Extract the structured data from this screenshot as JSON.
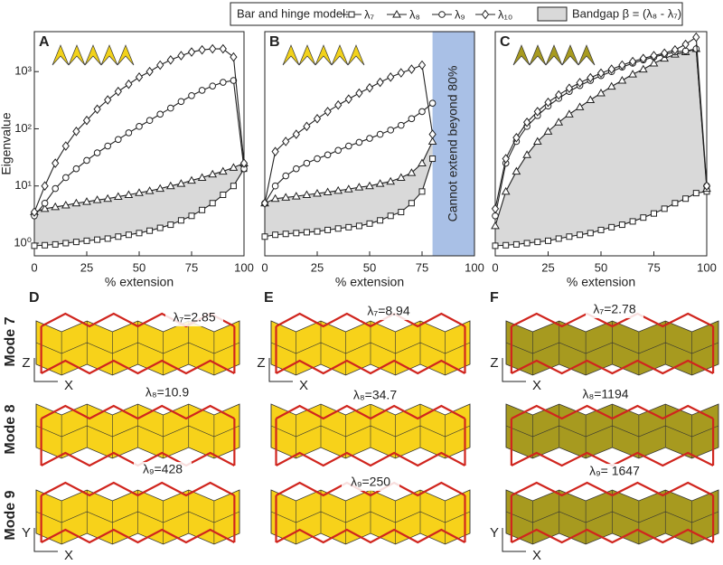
{
  "chart_data": [
    {
      "type": "line",
      "title": "A",
      "ylabel": "Eigenvalue",
      "xlabel": "% extension",
      "log_y": true,
      "legend_title": "Bar and hinge model:",
      "fill_label": "Bandgap β = (λ₈ - λ₇)",
      "fill_color": "#d9d9d9",
      "x": [
        0,
        5,
        10,
        15,
        20,
        25,
        30,
        35,
        40,
        45,
        50,
        55,
        60,
        65,
        70,
        75,
        80,
        85,
        90,
        95,
        100
      ],
      "xlim": [
        0,
        100
      ],
      "xticks": [
        0,
        25,
        50,
        75,
        100
      ],
      "ylim": [
        0.6,
        5000
      ],
      "yticks": [
        {
          "value": 1,
          "label": "10⁰"
        },
        {
          "value": 10,
          "label": "10¹"
        },
        {
          "value": 100,
          "label": "10²"
        },
        {
          "value": 1000,
          "label": "10³"
        }
      ],
      "series": [
        {
          "name": "λ₇",
          "marker": "square",
          "color": "#222222",
          "values": [
            0.9,
            0.92,
            0.95,
            1.0,
            1.05,
            1.1,
            1.15,
            1.2,
            1.3,
            1.4,
            1.5,
            1.65,
            1.85,
            2.1,
            2.5,
            3,
            3.8,
            5,
            7,
            10,
            20
          ]
        },
        {
          "name": "λ₈",
          "marker": "triangle",
          "color": "#222222",
          "values": [
            3.5,
            4,
            4.3,
            4.6,
            5,
            5.3,
            5.7,
            6,
            6.5,
            7,
            7.6,
            8.2,
            9,
            10,
            11,
            12.5,
            14,
            16,
            18,
            21,
            25
          ]
        },
        {
          "name": "λ₉",
          "marker": "circle",
          "color": "#222222",
          "values": [
            3,
            5,
            9,
            14,
            20,
            28,
            38,
            50,
            65,
            85,
            110,
            140,
            180,
            230,
            300,
            380,
            470,
            560,
            650,
            700,
            20
          ]
        },
        {
          "name": "λ₁₀",
          "marker": "diamond",
          "color": "#222222",
          "values": [
            3.5,
            10,
            25,
            50,
            90,
            140,
            220,
            320,
            450,
            600,
            800,
            1000,
            1300,
            1600,
            1900,
            2200,
            2400,
            2500,
            2500,
            1800,
            25
          ]
        }
      ]
    },
    {
      "type": "line",
      "title": "B",
      "xlabel": "% extension",
      "log_y": true,
      "fill_color": "#d9d9d9",
      "annotation": "Cannot extend beyond 80%",
      "shaded_x": [
        80,
        100
      ],
      "shade_color": "#a9c0e6",
      "x": [
        0,
        5,
        10,
        15,
        20,
        25,
        30,
        35,
        40,
        45,
        50,
        55,
        60,
        65,
        70,
        75,
        80
      ],
      "xlim": [
        0,
        100
      ],
      "xticks": [
        0,
        25,
        50,
        75,
        100
      ],
      "ylim": [
        0.6,
        5000
      ],
      "series": [
        {
          "name": "λ₇",
          "marker": "square",
          "color": "#222222",
          "values": [
            1.3,
            1.4,
            1.45,
            1.5,
            1.55,
            1.6,
            1.7,
            1.8,
            1.9,
            2.0,
            2.2,
            2.5,
            3,
            3.5,
            5,
            8,
            30
          ]
        },
        {
          "name": "λ₈",
          "marker": "triangle",
          "color": "#222222",
          "values": [
            5,
            6,
            6.3,
            6.6,
            7,
            7.4,
            7.8,
            8.3,
            8.8,
            9.5,
            10,
            11,
            12,
            14,
            17,
            25,
            60
          ]
        },
        {
          "name": "λ₉",
          "marker": "circle",
          "color": "#222222",
          "values": [
            5,
            10,
            15,
            20,
            25,
            30,
            35,
            42,
            50,
            58,
            68,
            80,
            95,
            115,
            150,
            200,
            280
          ]
        },
        {
          "name": "λ₁₀",
          "marker": "diamond",
          "color": "#222222",
          "values": [
            5,
            40,
            60,
            80,
            110,
            150,
            200,
            260,
            330,
            420,
            520,
            650,
            800,
            950,
            1100,
            1300,
            80
          ]
        }
      ]
    },
    {
      "type": "line",
      "title": "C",
      "xlabel": "% extension",
      "log_y": true,
      "fill_color": "#d9d9d9",
      "x": [
        0,
        5,
        10,
        15,
        20,
        25,
        30,
        35,
        40,
        45,
        50,
        55,
        60,
        65,
        70,
        75,
        80,
        85,
        90,
        95,
        100
      ],
      "xlim": [
        0,
        100
      ],
      "xticks": [
        0,
        25,
        50,
        75,
        100
      ],
      "ylim": [
        0.6,
        5000
      ],
      "series": [
        {
          "name": "λ₇",
          "marker": "square",
          "color": "#222222",
          "values": [
            0.9,
            0.92,
            0.95,
            1,
            1.05,
            1.1,
            1.2,
            1.3,
            1.4,
            1.5,
            1.7,
            1.9,
            2.1,
            2.4,
            2.8,
            3.3,
            4,
            5,
            6,
            7.5,
            8
          ]
        },
        {
          "name": "λ₈",
          "marker": "triangle",
          "color": "#222222",
          "values": [
            2,
            8,
            18,
            35,
            60,
            90,
            130,
            180,
            240,
            320,
            420,
            550,
            700,
            900,
            1100,
            1400,
            1700,
            2000,
            2200,
            2500,
            9
          ]
        },
        {
          "name": "λ₉",
          "marker": "circle",
          "color": "#222222",
          "values": [
            3,
            25,
            60,
            110,
            170,
            250,
            340,
            450,
            570,
            700,
            850,
            1000,
            1200,
            1400,
            1600,
            1800,
            2000,
            2200,
            2300,
            2500,
            10
          ]
        },
        {
          "name": "λ₁₀",
          "marker": "diamond",
          "color": "#222222",
          "values": [
            4,
            30,
            70,
            130,
            200,
            290,
            390,
            510,
            640,
            780,
            940,
            1100,
            1300,
            1500,
            1700,
            1900,
            2100,
            2400,
            3000,
            4000,
            10
          ]
        }
      ]
    }
  ],
  "modes": {
    "row_labels": [
      "Mode 7",
      "Mode 8",
      "Mode 9"
    ],
    "panels": [
      {
        "letter": "D",
        "eigen": [
          "λ₇=2.85",
          "λ₈=10.9",
          "λ₉=428"
        ],
        "axes_top": [
          "Z",
          "X"
        ],
        "axes_bottom": [
          "Y",
          "X"
        ]
      },
      {
        "letter": "E",
        "eigen": [
          "λ₇=8.94",
          "λ₈=34.7",
          "λ₉=250"
        ],
        "axes_top": [
          "Z",
          "X"
        ]
      },
      {
        "letter": "F",
        "eigen": [
          "λ₇=2.78",
          "λ₈=1194",
          "λ₉= 1647"
        ],
        "axes_top": [
          "Z",
          "X"
        ],
        "axes_bottom": [
          "Y",
          "X"
        ]
      }
    ]
  }
}
